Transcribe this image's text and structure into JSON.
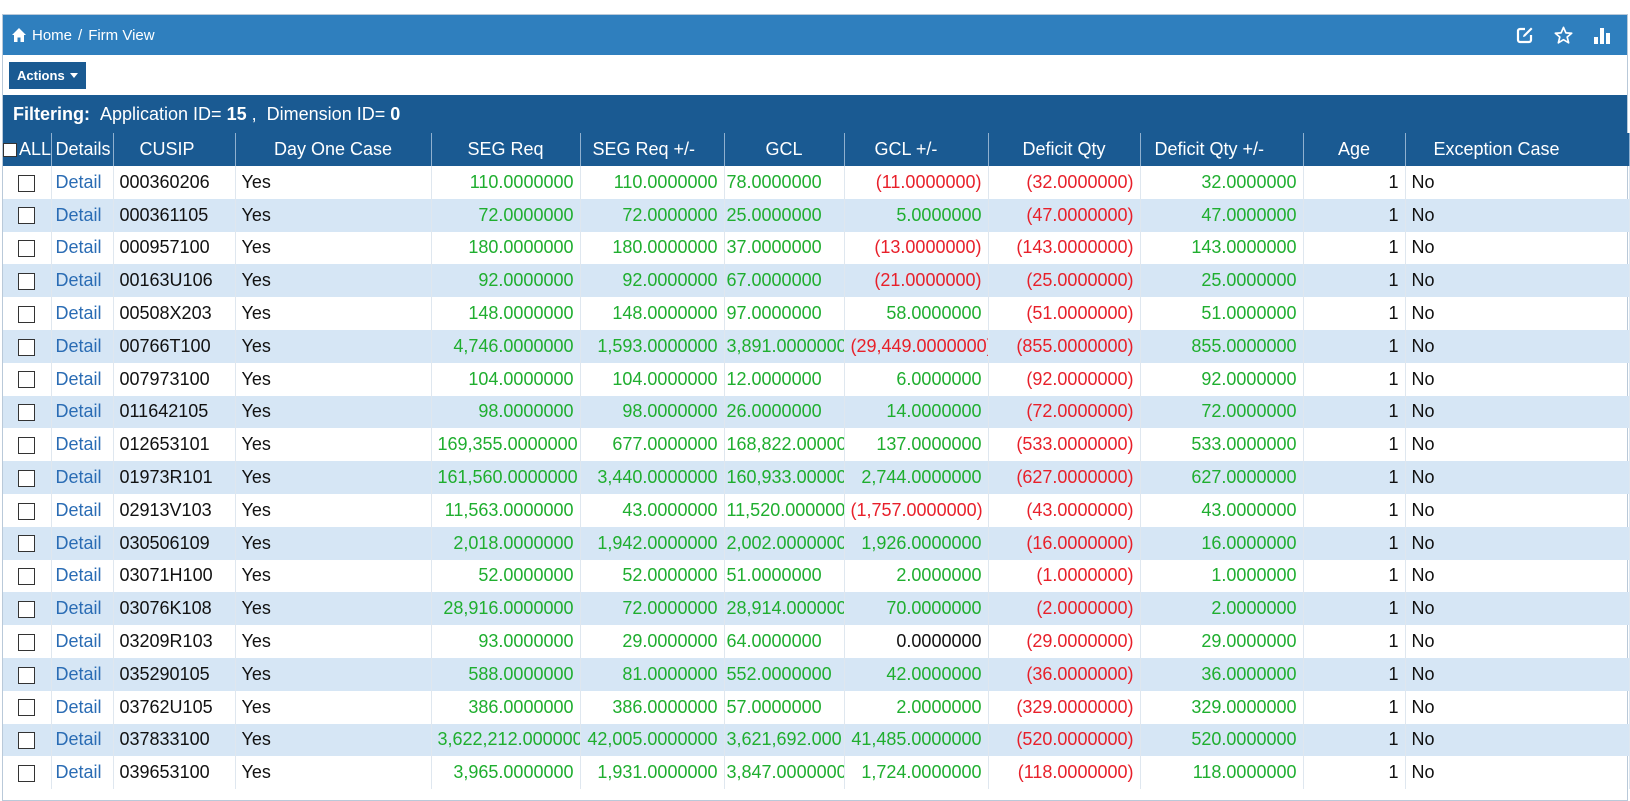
{
  "breadcrumb": {
    "home": "Home",
    "separator": "/",
    "current": "Firm View"
  },
  "icons": {
    "home": "home-icon",
    "edit": "edit-icon",
    "favorite": "star-icon",
    "chart": "bar-chart-icon"
  },
  "colors": {
    "header": "#2f7fbe",
    "dark": "#1a5a92",
    "positive": "#1fae2f",
    "negative": "#e8202a",
    "link": "#2a6cb4"
  },
  "actions": {
    "label": "Actions"
  },
  "filter": {
    "label": "Filtering:",
    "app_text": "Application ID=",
    "app_value": "15",
    "comma": ",",
    "dim_text": "Dimension ID=",
    "dim_value": "0"
  },
  "columns": {
    "all": "ALL",
    "details": "Details",
    "cusip": "CUSIP",
    "day_one": "Day One Case",
    "seg_req": "SEG Req",
    "seg_req_pm": "SEG Req +/-",
    "gcl": "GCL",
    "gcl_pm": "GCL +/-",
    "deficit": "Deficit Qty",
    "deficit_pm": "Deficit Qty +/-",
    "age": "Age",
    "exception": "Exception Case"
  },
  "rows": [
    {
      "detail": "Detail",
      "cusip": "000360206",
      "day_one": "Yes",
      "seg_req": "110.0000000",
      "seg_req_pm": "110.0000000",
      "gcl": "78.0000000",
      "gcl_pm": "(11.0000000)",
      "deficit": "(32.0000000)",
      "deficit_pm": "32.0000000",
      "age": "1",
      "exception": "No"
    },
    {
      "detail": "Detail",
      "cusip": "000361105",
      "day_one": "Yes",
      "seg_req": "72.0000000",
      "seg_req_pm": "72.0000000",
      "gcl": "25.0000000",
      "gcl_pm": "5.0000000",
      "deficit": "(47.0000000)",
      "deficit_pm": "47.0000000",
      "age": "1",
      "exception": "No"
    },
    {
      "detail": "Detail",
      "cusip": "000957100",
      "day_one": "Yes",
      "seg_req": "180.0000000",
      "seg_req_pm": "180.0000000",
      "gcl": "37.0000000",
      "gcl_pm": "(13.0000000)",
      "deficit": "(143.0000000)",
      "deficit_pm": "143.0000000",
      "age": "1",
      "exception": "No"
    },
    {
      "detail": "Detail",
      "cusip": "00163U106",
      "day_one": "Yes",
      "seg_req": "92.0000000",
      "seg_req_pm": "92.0000000",
      "gcl": "67.0000000",
      "gcl_pm": "(21.0000000)",
      "deficit": "(25.0000000)",
      "deficit_pm": "25.0000000",
      "age": "1",
      "exception": "No"
    },
    {
      "detail": "Detail",
      "cusip": "00508X203",
      "day_one": "Yes",
      "seg_req": "148.0000000",
      "seg_req_pm": "148.0000000",
      "gcl": "97.0000000",
      "gcl_pm": "58.0000000",
      "deficit": "(51.0000000)",
      "deficit_pm": "51.0000000",
      "age": "1",
      "exception": "No"
    },
    {
      "detail": "Detail",
      "cusip": "00766T100",
      "day_one": "Yes",
      "seg_req": "4,746.0000000",
      "seg_req_pm": "1,593.0000000",
      "gcl": "3,891.0000000",
      "gcl_pm": "(29,449.0000000)",
      "deficit": "(855.0000000)",
      "deficit_pm": "855.0000000",
      "age": "1",
      "exception": "No"
    },
    {
      "detail": "Detail",
      "cusip": "007973100",
      "day_one": "Yes",
      "seg_req": "104.0000000",
      "seg_req_pm": "104.0000000",
      "gcl": "12.0000000",
      "gcl_pm": "6.0000000",
      "deficit": "(92.0000000)",
      "deficit_pm": "92.0000000",
      "age": "1",
      "exception": "No"
    },
    {
      "detail": "Detail",
      "cusip": "011642105",
      "day_one": "Yes",
      "seg_req": "98.0000000",
      "seg_req_pm": "98.0000000",
      "gcl": "26.0000000",
      "gcl_pm": "14.0000000",
      "deficit": "(72.0000000)",
      "deficit_pm": "72.0000000",
      "age": "1",
      "exception": "No"
    },
    {
      "detail": "Detail",
      "cusip": "012653101",
      "day_one": "Yes",
      "seg_req": "169,355.0000000",
      "seg_req_pm": "677.0000000",
      "gcl": "168,822.00000",
      "gcl_pm": "137.0000000",
      "deficit": "(533.0000000)",
      "deficit_pm": "533.0000000",
      "age": "1",
      "exception": "No"
    },
    {
      "detail": "Detail",
      "cusip": "01973R101",
      "day_one": "Yes",
      "seg_req": "161,560.0000000",
      "seg_req_pm": "3,440.0000000",
      "gcl": "160,933.00000",
      "gcl_pm": "2,744.0000000",
      "deficit": "(627.0000000)",
      "deficit_pm": "627.0000000",
      "age": "1",
      "exception": "No"
    },
    {
      "detail": "Detail",
      "cusip": "02913V103",
      "day_one": "Yes",
      "seg_req": "11,563.0000000",
      "seg_req_pm": "43.0000000",
      "gcl": "11,520.000000",
      "gcl_pm": "(1,757.0000000)",
      "deficit": "(43.0000000)",
      "deficit_pm": "43.0000000",
      "age": "1",
      "exception": "No"
    },
    {
      "detail": "Detail",
      "cusip": "030506109",
      "day_one": "Yes",
      "seg_req": "2,018.0000000",
      "seg_req_pm": "1,942.0000000",
      "gcl": "2,002.0000000",
      "gcl_pm": "1,926.0000000",
      "deficit": "(16.0000000)",
      "deficit_pm": "16.0000000",
      "age": "1",
      "exception": "No"
    },
    {
      "detail": "Detail",
      "cusip": "03071H100",
      "day_one": "Yes",
      "seg_req": "52.0000000",
      "seg_req_pm": "52.0000000",
      "gcl": "51.0000000",
      "gcl_pm": "2.0000000",
      "deficit": "(1.0000000)",
      "deficit_pm": "1.0000000",
      "age": "1",
      "exception": "No"
    },
    {
      "detail": "Detail",
      "cusip": "03076K108",
      "day_one": "Yes",
      "seg_req": "28,916.0000000",
      "seg_req_pm": "72.0000000",
      "gcl": "28,914.000000",
      "gcl_pm": "70.0000000",
      "deficit": "(2.0000000)",
      "deficit_pm": "2.0000000",
      "age": "1",
      "exception": "No"
    },
    {
      "detail": "Detail",
      "cusip": "03209R103",
      "day_one": "Yes",
      "seg_req": "93.0000000",
      "seg_req_pm": "29.0000000",
      "gcl": "64.0000000",
      "gcl_pm": "0.0000000",
      "deficit": "(29.0000000)",
      "deficit_pm": "29.0000000",
      "age": "1",
      "exception": "No"
    },
    {
      "detail": "Detail",
      "cusip": "035290105",
      "day_one": "Yes",
      "seg_req": "588.0000000",
      "seg_req_pm": "81.0000000",
      "gcl": "552.0000000",
      "gcl_pm": "42.0000000",
      "deficit": "(36.0000000)",
      "deficit_pm": "36.0000000",
      "age": "1",
      "exception": "No"
    },
    {
      "detail": "Detail",
      "cusip": "03762U105",
      "day_one": "Yes",
      "seg_req": "386.0000000",
      "seg_req_pm": "386.0000000",
      "gcl": "57.0000000",
      "gcl_pm": "2.0000000",
      "deficit": "(329.0000000)",
      "deficit_pm": "329.0000000",
      "age": "1",
      "exception": "No"
    },
    {
      "detail": "Detail",
      "cusip": "037833100",
      "day_one": "Yes",
      "seg_req": "3,622,212.0000000",
      "seg_req_pm": "42,005.0000000",
      "gcl": "3,621,692.000",
      "gcl_pm": "41,485.0000000",
      "deficit": "(520.0000000)",
      "deficit_pm": "520.0000000",
      "age": "1",
      "exception": "No"
    },
    {
      "detail": "Detail",
      "cusip": "039653100",
      "day_one": "Yes",
      "seg_req": "3,965.0000000",
      "seg_req_pm": "1,931.0000000",
      "gcl": "3,847.0000000",
      "gcl_pm": "1,724.0000000",
      "deficit": "(118.0000000)",
      "deficit_pm": "118.0000000",
      "age": "1",
      "exception": "No"
    }
  ]
}
